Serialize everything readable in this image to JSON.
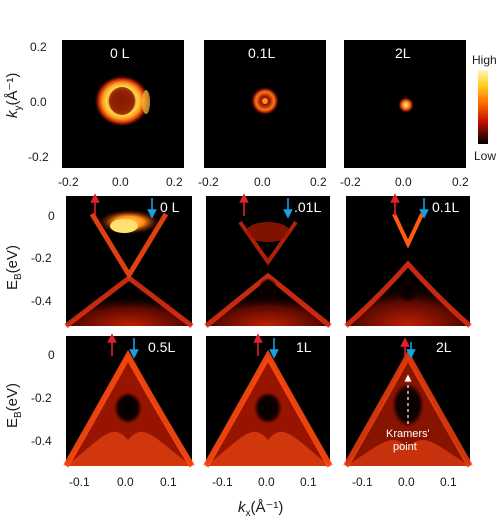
{
  "colorbar": {
    "high_label": "High",
    "low_label": "Low"
  },
  "top_row": {
    "y_axis_label": "k",
    "y_axis_sub": "y",
    "y_axis_unit": "(Å⁻¹)",
    "y_ticks": [
      "0.2",
      "0.0",
      "-0.2"
    ],
    "x_ticks": [
      "-0.2",
      "0.0",
      "0.2"
    ],
    "panels": [
      {
        "label": "0 L"
      },
      {
        "label": "0.1L"
      },
      {
        "label": "2L"
      }
    ]
  },
  "middle_row": {
    "y_axis_label": "E",
    "y_axis_sub": "B",
    "y_axis_unit": "(eV)",
    "y_ticks": [
      "0",
      "-0.2",
      "-0.4"
    ],
    "panels": [
      {
        "label": "0 L"
      },
      {
        "label": ".01L"
      },
      {
        "label": "0.1L"
      }
    ]
  },
  "bottom_row": {
    "y_axis_label": "E",
    "y_axis_sub": "B",
    "y_axis_unit": "(eV)",
    "y_ticks": [
      "0",
      "-0.2",
      "-0.4"
    ],
    "x_ticks": [
      "-0.1",
      "0.0",
      "0.1"
    ],
    "panels": [
      {
        "label": "0.5L"
      },
      {
        "label": "1L"
      },
      {
        "label": "2L"
      }
    ],
    "annotation": {
      "line1": "Kramers'",
      "line2": "point"
    }
  },
  "x_axis": {
    "label": "k",
    "sub": "x",
    "unit": "(Å⁻¹)"
  },
  "colors": {
    "arrow_up": "#e0202a",
    "arrow_down": "#1aa0e0",
    "panel_bg": "#000000"
  }
}
